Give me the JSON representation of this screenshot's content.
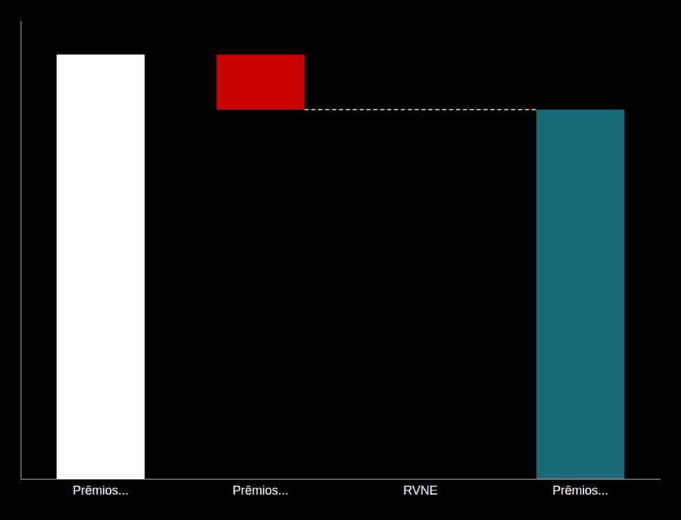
{
  "chart_data": {
    "type": "bar",
    "categories": [
      "Prêmios...",
      "Prêmios...",
      "RVNE",
      "Prêmios..."
    ],
    "values": [
      100,
      13,
      null,
      87
    ],
    "base": [
      0,
      87,
      null,
      0
    ],
    "connector": 87,
    "colors": [
      "#ffffff",
      "#cc0000",
      null,
      "#1a6b7a"
    ],
    "ylim": [
      0,
      108
    ],
    "tick_labels": "x"
  }
}
